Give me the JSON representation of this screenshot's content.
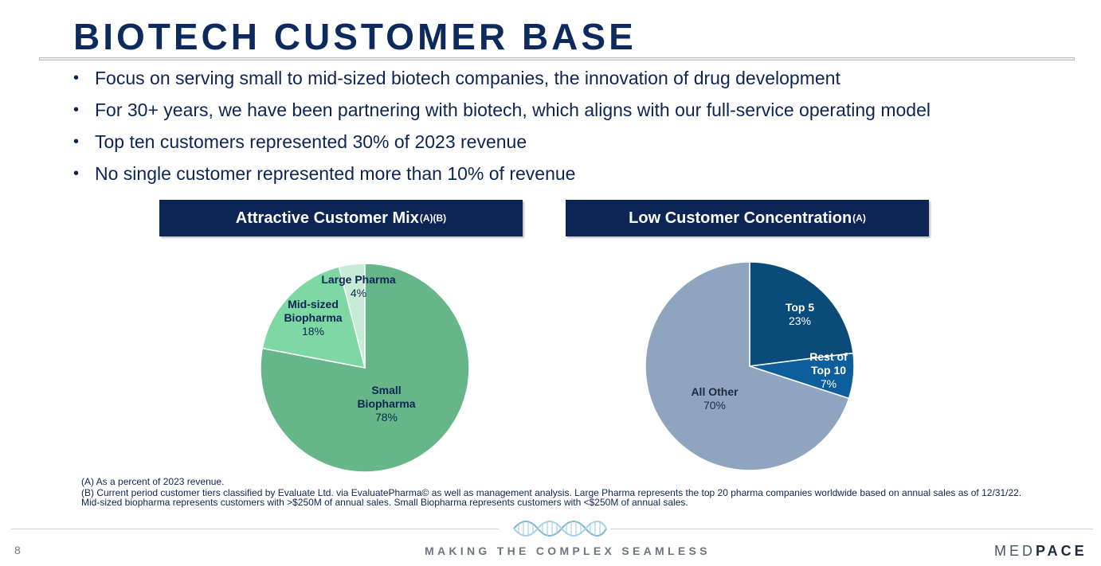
{
  "title": "BIOTECH CUSTOMER BASE",
  "bullets": [
    "Focus on serving small to mid-sized biotech companies, the innovation of drug development",
    "For 30+ years, we have been partnering with biotech, which aligns with our full-service operating model",
    "Top ten customers represented 30% of 2023 revenue",
    "No single customer represented more than 10% of revenue"
  ],
  "panels": {
    "left": {
      "title": "Attractive Customer Mix",
      "superscript": "(A)(B)"
    },
    "right": {
      "title": "Low Customer Concentration",
      "superscript": "(A)"
    }
  },
  "chart_data": [
    {
      "type": "pie",
      "title": "Attractive Customer Mix",
      "slices": [
        {
          "lines": [
            "Small",
            "Biopharma"
          ],
          "value": 78,
          "value_label": "78%",
          "color": "#66b68a"
        },
        {
          "lines": [
            "Mid-sized",
            "Biopharma"
          ],
          "value": 18,
          "value_label": "18%",
          "color": "#7ed8a3"
        },
        {
          "lines": [
            "Large Pharma"
          ],
          "value": 4,
          "value_label": "4%",
          "color": "#c7ecd6"
        }
      ]
    },
    {
      "type": "pie",
      "title": "Low Customer Concentration",
      "slices": [
        {
          "lines": [
            "Top 5"
          ],
          "value": 23,
          "value_label": "23%",
          "color": "#0a4b7a"
        },
        {
          "lines": [
            "Rest of",
            "Top 10"
          ],
          "value": 7,
          "value_label": "7%",
          "color": "#0c5f9b"
        },
        {
          "lines": [
            "All Other"
          ],
          "value": 70,
          "value_label": "70%",
          "color": "#8fa4bf"
        }
      ]
    }
  ],
  "footnotes": [
    "(A)  As a percent of 2023 revenue.",
    "(B) Current period customer tiers classified by Evaluate Ltd. via EvaluatePharma© as well as management analysis. Large Pharma represents the top 20 pharma companies worldwide based on annual sales as of 12/31/22. Mid-sized biopharma represents customers with >$250M of annual sales. Small Biopharma represents customers with <$250M of annual sales."
  ],
  "footer": {
    "page_number": "8",
    "tagline": "MAKING THE COMPLEX SEAMLESS",
    "logo_light": "MED",
    "logo_bold": "PACE"
  }
}
